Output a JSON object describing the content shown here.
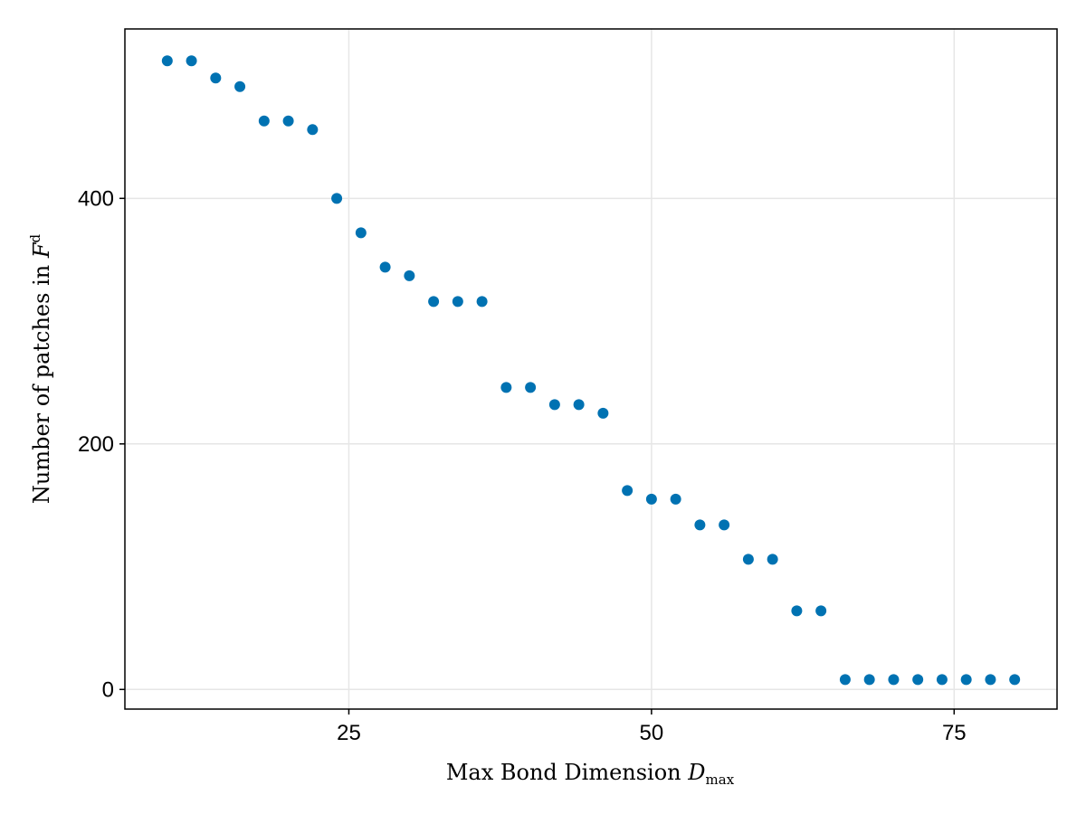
{
  "chart_data": {
    "type": "scatter",
    "title": "",
    "xlabel": "Max Bond Dimension",
    "xlabel_symbol": "D",
    "xlabel_subscript": "max",
    "ylabel": "Number of patches in",
    "ylabel_symbol": "F",
    "ylabel_superscript": "d",
    "xlim": [
      6.5,
      83.5
    ],
    "ylim": [
      -16,
      538
    ],
    "xticks": [
      25,
      50,
      75
    ],
    "yticks": [
      0,
      200,
      400
    ],
    "xtick_labels": [
      "25",
      "50",
      "75"
    ],
    "ytick_labels": [
      "0",
      "200",
      "400"
    ],
    "grid": true,
    "legend": "none",
    "colors": {
      "marker": "#0072b2",
      "grid": "#e6e6e6",
      "frame": "#000000"
    },
    "series": [
      {
        "x": [
          10,
          12,
          14,
          16,
          18,
          20,
          22,
          24,
          26,
          28,
          30,
          32,
          34,
          36,
          38,
          40,
          42,
          44,
          46,
          48,
          50,
          52,
          54,
          56,
          58,
          60,
          62,
          64,
          66,
          68,
          70,
          72,
          74,
          76,
          78,
          80
        ],
        "y": [
          512,
          512,
          498,
          491,
          463,
          463,
          456,
          400,
          372,
          344,
          337,
          316,
          316,
          316,
          246,
          246,
          232,
          232,
          225,
          162,
          155,
          155,
          134,
          134,
          106,
          106,
          64,
          64,
          8,
          8,
          8,
          8,
          8,
          8,
          8,
          8
        ]
      }
    ]
  }
}
